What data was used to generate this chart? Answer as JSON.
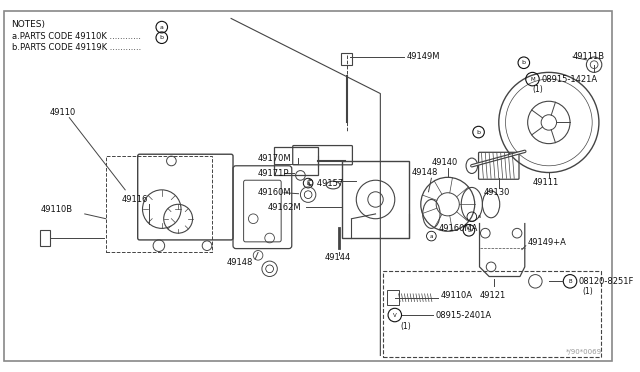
{
  "bg_color": "#ffffff",
  "border_color": "#888888",
  "line_color": "#444444",
  "text_color": "#111111",
  "notes_lines": [
    "NOTES)",
    "a.PARTS CODE 49110K ............(a)",
    "b.PARTS CODE 49119K ............(b)"
  ],
  "watermark": "*/90*0069",
  "label_fs": 6.0
}
